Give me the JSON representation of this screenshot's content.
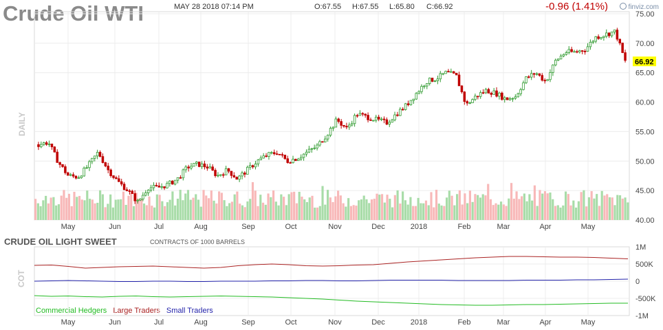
{
  "header": {
    "title": "Crude Oil WTI",
    "datetime": "MAY 28 2018 07:14 PM",
    "open": "O:67.55",
    "high": "H:67.55",
    "low": "L:65.80",
    "close": "C:66.92",
    "change": "-0.96 (1.41%)",
    "brand": "finviz.com",
    "last_price_tag": "66.92"
  },
  "side_labels": {
    "price": "DAILY",
    "cot": "COT"
  },
  "cot": {
    "title": "CRUDE OIL LIGHT SWEET",
    "subtitle": "CONTRACTS OF 1000 BARRELS",
    "legend": [
      "Commercial Hedgers",
      "Large Traders",
      "Small Traders"
    ]
  },
  "colors": {
    "up": "#2e9a2e",
    "down": "#c00000",
    "vol_up": "#a8dca8",
    "vol_down": "#f8b8b8",
    "commercial": "#22bb22",
    "large": "#aa2222",
    "small": "#2222aa",
    "price_tag_bg": "#ffff00"
  },
  "chart_data": [
    {
      "type": "candlestick",
      "title": "Crude Oil WTI",
      "x_tick_labels": [
        "May",
        "Jun",
        "Jul",
        "Aug",
        "Sep",
        "Oct",
        "Nov",
        "Dec",
        "2018",
        "Feb",
        "Mar",
        "Apr",
        "May"
      ],
      "y_tick_labels": [
        "40.00",
        "45.00",
        "50.00",
        "55.00",
        "60.00",
        "65.00",
        "70.00",
        "75.00"
      ],
      "ylim": [
        40,
        75
      ],
      "grid": true,
      "last_value": 66.92,
      "close_series": {
        "dates": [
          "2017-04-12",
          "2017-04-19",
          "2017-04-26",
          "2017-05-03",
          "2017-05-10",
          "2017-05-17",
          "2017-05-24",
          "2017-05-31",
          "2017-06-07",
          "2017-06-14",
          "2017-06-21",
          "2017-06-28",
          "2017-07-05",
          "2017-07-12",
          "2017-07-19",
          "2017-07-26",
          "2017-08-02",
          "2017-08-09",
          "2017-08-16",
          "2017-08-23",
          "2017-08-30",
          "2017-09-06",
          "2017-09-13",
          "2017-09-20",
          "2017-09-27",
          "2017-10-04",
          "2017-10-11",
          "2017-10-18",
          "2017-10-25",
          "2017-11-01",
          "2017-11-08",
          "2017-11-15",
          "2017-11-22",
          "2017-11-29",
          "2017-12-06",
          "2017-12-13",
          "2017-12-20",
          "2017-12-27",
          "2018-01-03",
          "2018-01-10",
          "2018-01-17",
          "2018-01-24",
          "2018-01-31",
          "2018-02-07",
          "2018-02-14",
          "2018-02-21",
          "2018-02-28",
          "2018-03-07",
          "2018-03-14",
          "2018-03-21",
          "2018-03-28",
          "2018-04-04",
          "2018-04-11",
          "2018-04-18",
          "2018-04-25",
          "2018-05-02",
          "2018-05-09",
          "2018-05-16",
          "2018-05-21",
          "2018-05-25"
        ],
        "values": [
          52.8,
          53.2,
          49.8,
          47.5,
          47.3,
          49.2,
          51.5,
          48.5,
          46.5,
          45.0,
          43.0,
          45.5,
          45.5,
          46.0,
          47.0,
          49.0,
          49.5,
          49.0,
          47.5,
          48.5,
          47.0,
          48.5,
          50.0,
          51.0,
          51.5,
          50.0,
          50.5,
          51.5,
          52.5,
          54.5,
          57.0,
          55.5,
          58.0,
          57.5,
          57.0,
          56.5,
          58.0,
          59.5,
          61.5,
          63.5,
          64.0,
          65.0,
          64.5,
          59.5,
          61.0,
          62.0,
          61.5,
          60.5,
          61.0,
          64.0,
          65.0,
          63.5,
          67.0,
          68.5,
          68.5,
          69.0,
          71.0,
          71.5,
          72.0,
          66.9
        ]
      }
    },
    {
      "type": "bar",
      "title": "Volume",
      "note": "volume bars, green up / pink down"
    },
    {
      "type": "line",
      "title": "CRUDE OIL LIGHT SWEET",
      "subtitle": "CONTRACTS OF 1000 BARRELS",
      "x_tick_labels": [
        "May",
        "Jun",
        "Jul",
        "Aug",
        "Sep",
        "Oct",
        "Nov",
        "Dec",
        "2018",
        "Feb",
        "Mar",
        "Apr",
        "May"
      ],
      "y_tick_labels": [
        "1M",
        "500K",
        "0",
        "-500K",
        "-1M"
      ],
      "ylim": [
        -1000000,
        1000000
      ],
      "series": [
        {
          "name": "Commercial Hedgers",
          "values": [
            -420000,
            -440000,
            -430000,
            -450000,
            -460000,
            -440000,
            -430000,
            -450000,
            -460000,
            -450000,
            -440000,
            -430000,
            -440000,
            -450000,
            -460000,
            -480000,
            -500000,
            -520000,
            -550000,
            -580000,
            -600000,
            -620000,
            -640000,
            -660000,
            -680000,
            -690000,
            -700000,
            -700000,
            -690000,
            -680000,
            -680000,
            -670000,
            -660000,
            -650000,
            -640000,
            -640000
          ]
        },
        {
          "name": "Large Traders",
          "values": [
            460000,
            470000,
            430000,
            380000,
            400000,
            420000,
            430000,
            440000,
            420000,
            400000,
            380000,
            400000,
            450000,
            480000,
            500000,
            480000,
            450000,
            440000,
            450000,
            470000,
            480000,
            520000,
            560000,
            590000,
            620000,
            650000,
            680000,
            700000,
            720000,
            720000,
            710000,
            700000,
            700000,
            690000,
            670000,
            650000
          ]
        },
        {
          "name": "Small Traders",
          "values": [
            0,
            10000,
            20000,
            10000,
            0,
            -10000,
            -10000,
            0,
            0,
            -10000,
            -10000,
            0,
            0,
            0,
            10000,
            10000,
            20000,
            20000,
            10000,
            10000,
            20000,
            30000,
            30000,
            30000,
            30000,
            20000,
            20000,
            20000,
            20000,
            30000,
            30000,
            30000,
            40000,
            40000,
            50000,
            60000
          ]
        }
      ]
    }
  ]
}
